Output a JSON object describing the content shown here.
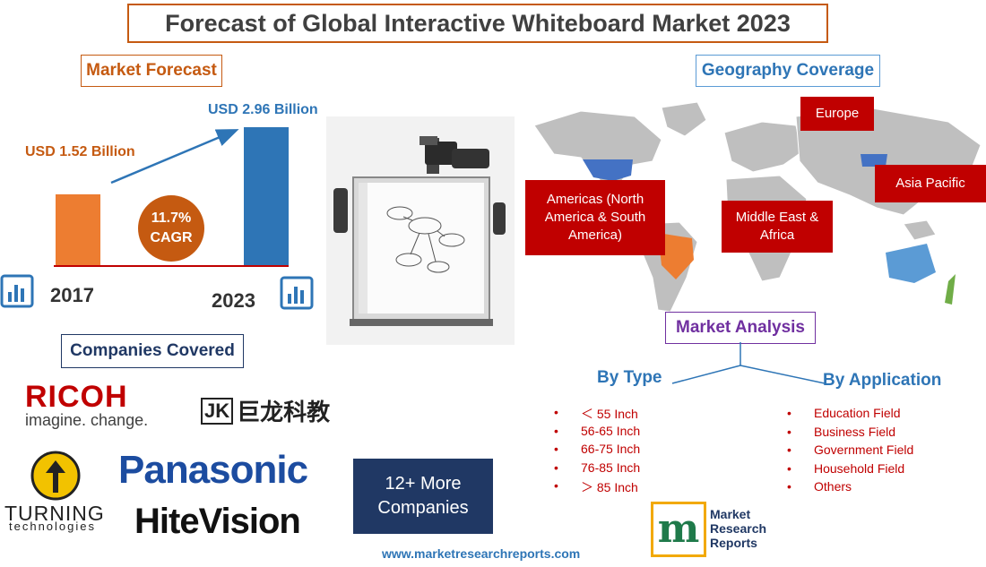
{
  "title": "Forecast of Global Interactive Whiteboard Market 2023",
  "market_forecast": {
    "label": "Market Forecast",
    "bar_2017": {
      "year": "2017",
      "value_label": "USD 1.52 Billion",
      "value": 1.52,
      "color": "#ed7d31"
    },
    "bar_2023": {
      "year": "2023",
      "value_label": "USD 2.96 Billion",
      "value": 2.96,
      "color": "#2e75b6"
    },
    "cagr_value": "11.7%",
    "cagr_label": "CAGR"
  },
  "geography": {
    "label": "Geography Coverage",
    "regions": {
      "europe": "Europe",
      "americas": "Americas (North America & South America)",
      "middle_east": "Middle East & Africa",
      "asia_pacific": "Asia Pacific"
    }
  },
  "market_analysis": {
    "label": "Market Analysis",
    "by_type": {
      "heading": "By Type",
      "items": [
        "＜ 55 Inch",
        "56-65 Inch",
        "66-75 Inch",
        "76-85 Inch",
        "＞ 85 Inch"
      ]
    },
    "by_application": {
      "heading": "By Application",
      "items": [
        "Education Field",
        "Business Field",
        "Government Field",
        "Household Field",
        "Others"
      ]
    },
    "bullet": "•"
  },
  "companies": {
    "label": "Companies Covered",
    "ricoh": {
      "name": "RICOH",
      "tagline": "imagine. change."
    },
    "jlk": {
      "mark": "JK",
      "name": "巨龙科教"
    },
    "turning": {
      "name": "TURNING",
      "sub": "technologies"
    },
    "panasonic": "Panasonic",
    "hitevision": "HiteVision",
    "more": "12+ More Companies"
  },
  "publisher": {
    "line1": "Market",
    "line2": "Research",
    "line3": "Reports",
    "mark": "m",
    "url": "www.marketresearchreports.com"
  },
  "colors": {
    "accent_orange": "#c55a11",
    "accent_blue": "#2e75b6",
    "region_red": "#c00000",
    "navy": "#203864"
  }
}
